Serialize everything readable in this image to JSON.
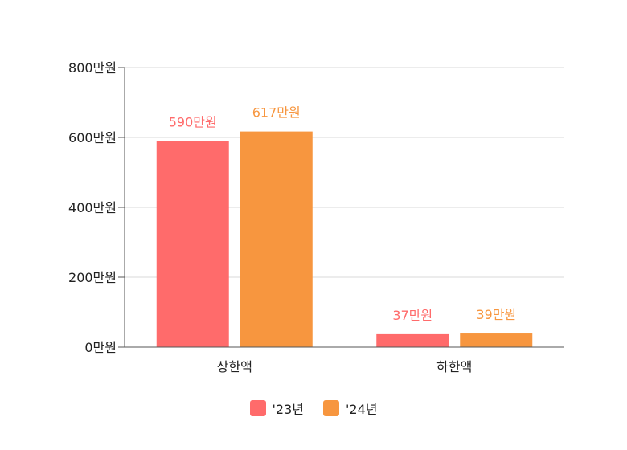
{
  "chart_data": {
    "type": "bar",
    "categories": [
      "상한액",
      "하한액"
    ],
    "series": [
      {
        "name": "'23년",
        "values": [
          590,
          37
        ],
        "labels": [
          "590만원",
          "37만원"
        ],
        "color": "#ff6b6b"
      },
      {
        "name": "'24년",
        "values": [
          617,
          39
        ],
        "labels": [
          "617만원",
          "39만원"
        ],
        "color": "#f7963f"
      }
    ],
    "yticks": [
      0,
      200,
      400,
      600,
      800
    ],
    "ytick_labels": [
      "0만원",
      "200만원",
      "400만원",
      "600만원",
      "800만원"
    ],
    "ylim": [
      0,
      800
    ],
    "grid": true,
    "legend_position": "bottom-center"
  },
  "colors": {
    "grid": "#d9d9d9",
    "axis": "#555555",
    "text": "#222222"
  }
}
